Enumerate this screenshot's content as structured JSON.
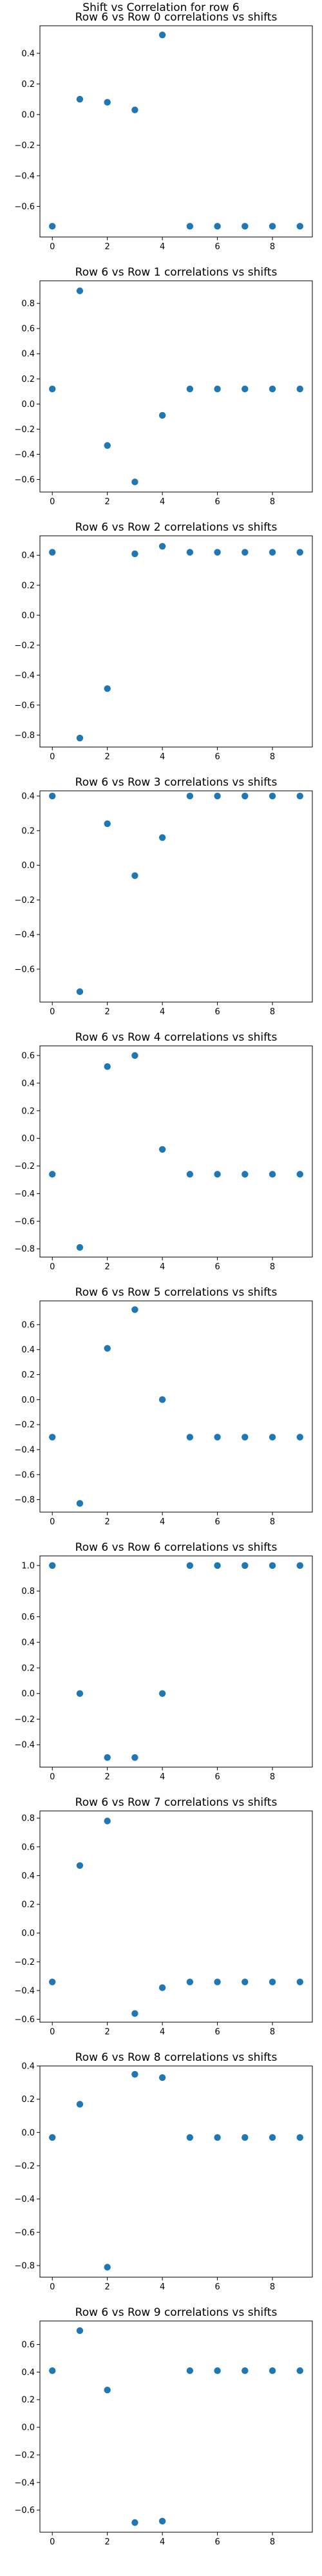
{
  "figure": {
    "suptitle": "Shift vs Correlation for row 6",
    "point_color": "#1f77b4"
  },
  "chart_data": [
    {
      "type": "scatter",
      "title": "Row 6 vs Row 0 correlations vs shifts",
      "x": [
        0,
        1,
        2,
        3,
        4,
        5,
        6,
        7,
        8,
        9
      ],
      "y": [
        -0.73,
        0.1,
        0.08,
        0.03,
        0.52,
        -0.73,
        -0.73,
        -0.73,
        -0.73,
        -0.73
      ],
      "xlim": [
        -0.45,
        9.45
      ],
      "ylim": [
        -0.8,
        0.58
      ],
      "xticks": [
        0,
        2,
        4,
        6,
        8
      ],
      "yticks": [
        -0.6,
        -0.4,
        -0.2,
        0.0,
        0.2,
        0.4
      ],
      "ytick_labels": [
        "−0.6",
        "−0.4",
        "−0.2",
        "0.0",
        "0.2",
        "0.4"
      ]
    },
    {
      "type": "scatter",
      "title": "Row 6 vs Row 1 correlations vs shifts",
      "x": [
        0,
        1,
        2,
        3,
        4,
        5,
        6,
        7,
        8,
        9
      ],
      "y": [
        0.12,
        0.9,
        -0.33,
        -0.62,
        -0.09,
        0.12,
        0.12,
        0.12,
        0.12,
        0.12
      ],
      "xlim": [
        -0.45,
        9.45
      ],
      "ylim": [
        -0.7,
        0.98
      ],
      "xticks": [
        0,
        2,
        4,
        6,
        8
      ],
      "yticks": [
        -0.6,
        -0.4,
        -0.2,
        0.0,
        0.2,
        0.4,
        0.6,
        0.8
      ],
      "ytick_labels": [
        "−0.6",
        "−0.4",
        "−0.2",
        "0.0",
        "0.2",
        "0.4",
        "0.6",
        "0.8"
      ]
    },
    {
      "type": "scatter",
      "title": "Row 6 vs Row 2 correlations vs shifts",
      "x": [
        0,
        1,
        2,
        3,
        4,
        5,
        6,
        7,
        8,
        9
      ],
      "y": [
        0.42,
        -0.82,
        -0.49,
        0.41,
        0.46,
        0.42,
        0.42,
        0.42,
        0.42,
        0.42
      ],
      "xlim": [
        -0.45,
        9.45
      ],
      "ylim": [
        -0.88,
        0.53
      ],
      "xticks": [
        0,
        2,
        4,
        6,
        8
      ],
      "yticks": [
        -0.8,
        -0.6,
        -0.4,
        -0.2,
        0.0,
        0.2,
        0.4
      ],
      "ytick_labels": [
        "−0.8",
        "−0.6",
        "−0.4",
        "−0.2",
        "0.0",
        "0.2",
        "0.4"
      ]
    },
    {
      "type": "scatter",
      "title": "Row 6 vs Row 3 correlations vs shifts",
      "x": [
        0,
        1,
        2,
        3,
        4,
        5,
        6,
        7,
        8,
        9
      ],
      "y": [
        0.4,
        -0.73,
        0.24,
        -0.06,
        0.16,
        0.4,
        0.4,
        0.4,
        0.4,
        0.4
      ],
      "xlim": [
        -0.45,
        9.45
      ],
      "ylim": [
        -0.79,
        0.43
      ],
      "xticks": [
        0,
        2,
        4,
        6,
        8
      ],
      "yticks": [
        -0.6,
        -0.4,
        -0.2,
        0.0,
        0.2,
        0.4
      ],
      "ytick_labels": [
        "−0.6",
        "−0.4",
        "−0.2",
        "0.0",
        "0.2",
        "0.4"
      ]
    },
    {
      "type": "scatter",
      "title": "Row 6 vs Row 4 correlations vs shifts",
      "x": [
        0,
        1,
        2,
        3,
        4,
        5,
        6,
        7,
        8,
        9
      ],
      "y": [
        -0.26,
        -0.79,
        0.52,
        0.6,
        -0.08,
        -0.26,
        -0.26,
        -0.26,
        -0.26,
        -0.26
      ],
      "xlim": [
        -0.45,
        9.45
      ],
      "ylim": [
        -0.86,
        0.67
      ],
      "xticks": [
        0,
        2,
        4,
        6,
        8
      ],
      "yticks": [
        -0.8,
        -0.6,
        -0.4,
        -0.2,
        0.0,
        0.2,
        0.4,
        0.6
      ],
      "ytick_labels": [
        "−0.8",
        "−0.6",
        "−0.4",
        "−0.2",
        "0.0",
        "0.2",
        "0.4",
        "0.6"
      ]
    },
    {
      "type": "scatter",
      "title": "Row 6 vs Row 5 correlations vs shifts",
      "x": [
        0,
        1,
        2,
        3,
        4,
        5,
        6,
        7,
        8,
        9
      ],
      "y": [
        -0.3,
        -0.83,
        0.41,
        0.72,
        0.0,
        -0.3,
        -0.3,
        -0.3,
        -0.3,
        -0.3
      ],
      "xlim": [
        -0.45,
        9.45
      ],
      "ylim": [
        -0.9,
        0.79
      ],
      "xticks": [
        0,
        2,
        4,
        6,
        8
      ],
      "yticks": [
        -0.8,
        -0.6,
        -0.4,
        -0.2,
        0.0,
        0.2,
        0.4,
        0.6
      ],
      "ytick_labels": [
        "−0.8",
        "−0.6",
        "−0.4",
        "−0.2",
        "0.0",
        "0.2",
        "0.4",
        "0.6"
      ]
    },
    {
      "type": "scatter",
      "title": "Row 6 vs Row 6 correlations vs shifts",
      "x": [
        0,
        1,
        2,
        3,
        4,
        5,
        6,
        7,
        8,
        9
      ],
      "y": [
        1.0,
        0.0,
        -0.5,
        -0.5,
        0.0,
        1.0,
        1.0,
        1.0,
        1.0,
        1.0
      ],
      "xlim": [
        -0.45,
        9.45
      ],
      "ylim": [
        -0.575,
        1.075
      ],
      "xticks": [
        0,
        2,
        4,
        6,
        8
      ],
      "yticks": [
        -0.4,
        -0.2,
        0.0,
        0.2,
        0.4,
        0.6,
        0.8,
        1.0
      ],
      "ytick_labels": [
        "−0.4",
        "−0.2",
        "0.0",
        "0.2",
        "0.4",
        "0.6",
        "0.8",
        "1.0"
      ]
    },
    {
      "type": "scatter",
      "title": "Row 6 vs Row 7 correlations vs shifts",
      "x": [
        0,
        1,
        2,
        3,
        4,
        5,
        6,
        7,
        8,
        9
      ],
      "y": [
        -0.34,
        0.47,
        0.78,
        -0.56,
        -0.38,
        -0.34,
        -0.34,
        -0.34,
        -0.34,
        -0.34
      ],
      "xlim": [
        -0.45,
        9.45
      ],
      "ylim": [
        -0.62,
        0.85
      ],
      "xticks": [
        0,
        2,
        4,
        6,
        8
      ],
      "yticks": [
        -0.6,
        -0.4,
        -0.2,
        0.0,
        0.2,
        0.4,
        0.6,
        0.8
      ],
      "ytick_labels": [
        "−0.6",
        "−0.4",
        "−0.2",
        "0.0",
        "0.2",
        "0.4",
        "0.6",
        "0.8"
      ]
    },
    {
      "type": "scatter",
      "title": "Row 6 vs Row 8 correlations vs shifts",
      "x": [
        0,
        1,
        2,
        3,
        4,
        5,
        6,
        7,
        8,
        9
      ],
      "y": [
        -0.03,
        0.17,
        -0.81,
        0.35,
        0.33,
        -0.03,
        -0.03,
        -0.03,
        -0.03,
        -0.03
      ],
      "xlim": [
        -0.45,
        9.45
      ],
      "ylim": [
        -0.87,
        0.4
      ],
      "xticks": [
        0,
        2,
        4,
        6,
        8
      ],
      "yticks": [
        -0.8,
        -0.6,
        -0.4,
        -0.2,
        0.0,
        0.2,
        0.4
      ],
      "ytick_labels": [
        "−0.8",
        "−0.6",
        "−0.4",
        "−0.2",
        "0.0",
        "0.2",
        "0.4"
      ]
    },
    {
      "type": "scatter",
      "title": "Row 6 vs Row 9 correlations vs shifts",
      "x": [
        0,
        1,
        2,
        3,
        4,
        5,
        6,
        7,
        8,
        9
      ],
      "y": [
        0.41,
        0.7,
        0.27,
        -0.69,
        -0.68,
        0.41,
        0.41,
        0.41,
        0.41,
        0.41
      ],
      "xlim": [
        -0.45,
        9.45
      ],
      "ylim": [
        -0.76,
        0.77
      ],
      "xticks": [
        0,
        2,
        4,
        6,
        8
      ],
      "yticks": [
        -0.6,
        -0.4,
        -0.2,
        0.0,
        0.2,
        0.4,
        0.6
      ],
      "ytick_labels": [
        "−0.6",
        "−0.4",
        "−0.2",
        "0.0",
        "0.2",
        "0.4",
        "0.6"
      ]
    }
  ]
}
